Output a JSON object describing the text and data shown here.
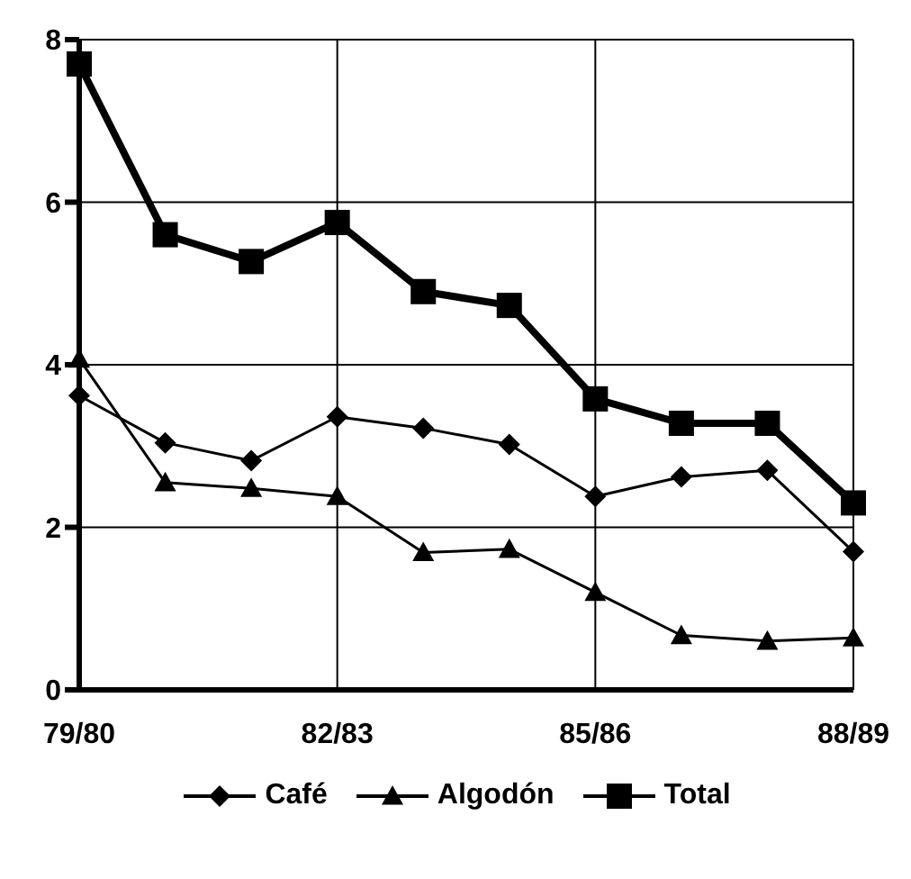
{
  "chart_data": {
    "type": "line",
    "categories": [
      "79/80",
      null,
      null,
      "82/83",
      null,
      null,
      "85/86",
      null,
      null,
      "88/89"
    ],
    "series": [
      {
        "name": "Café",
        "color": "#000000",
        "marker": "diamond",
        "values": [
          3.62,
          3.04,
          2.82,
          3.36,
          3.22,
          3.02,
          2.38,
          2.62,
          2.7,
          1.7
        ]
      },
      {
        "name": "Algodón",
        "color": "#000000",
        "marker": "triangle",
        "values": [
          4.07,
          2.55,
          2.48,
          2.38,
          1.69,
          1.73,
          1.2,
          0.67,
          0.6,
          0.64
        ]
      },
      {
        "name": "Total",
        "color": "#000000",
        "marker": "square",
        "values": [
          7.7,
          5.6,
          5.27,
          5.75,
          4.9,
          4.73,
          3.58,
          3.28,
          3.28,
          2.3
        ]
      }
    ],
    "ylim": [
      0,
      8
    ],
    "yticks": [
      0,
      2,
      4,
      6,
      8
    ],
    "grid": true,
    "legend": "bottom"
  }
}
